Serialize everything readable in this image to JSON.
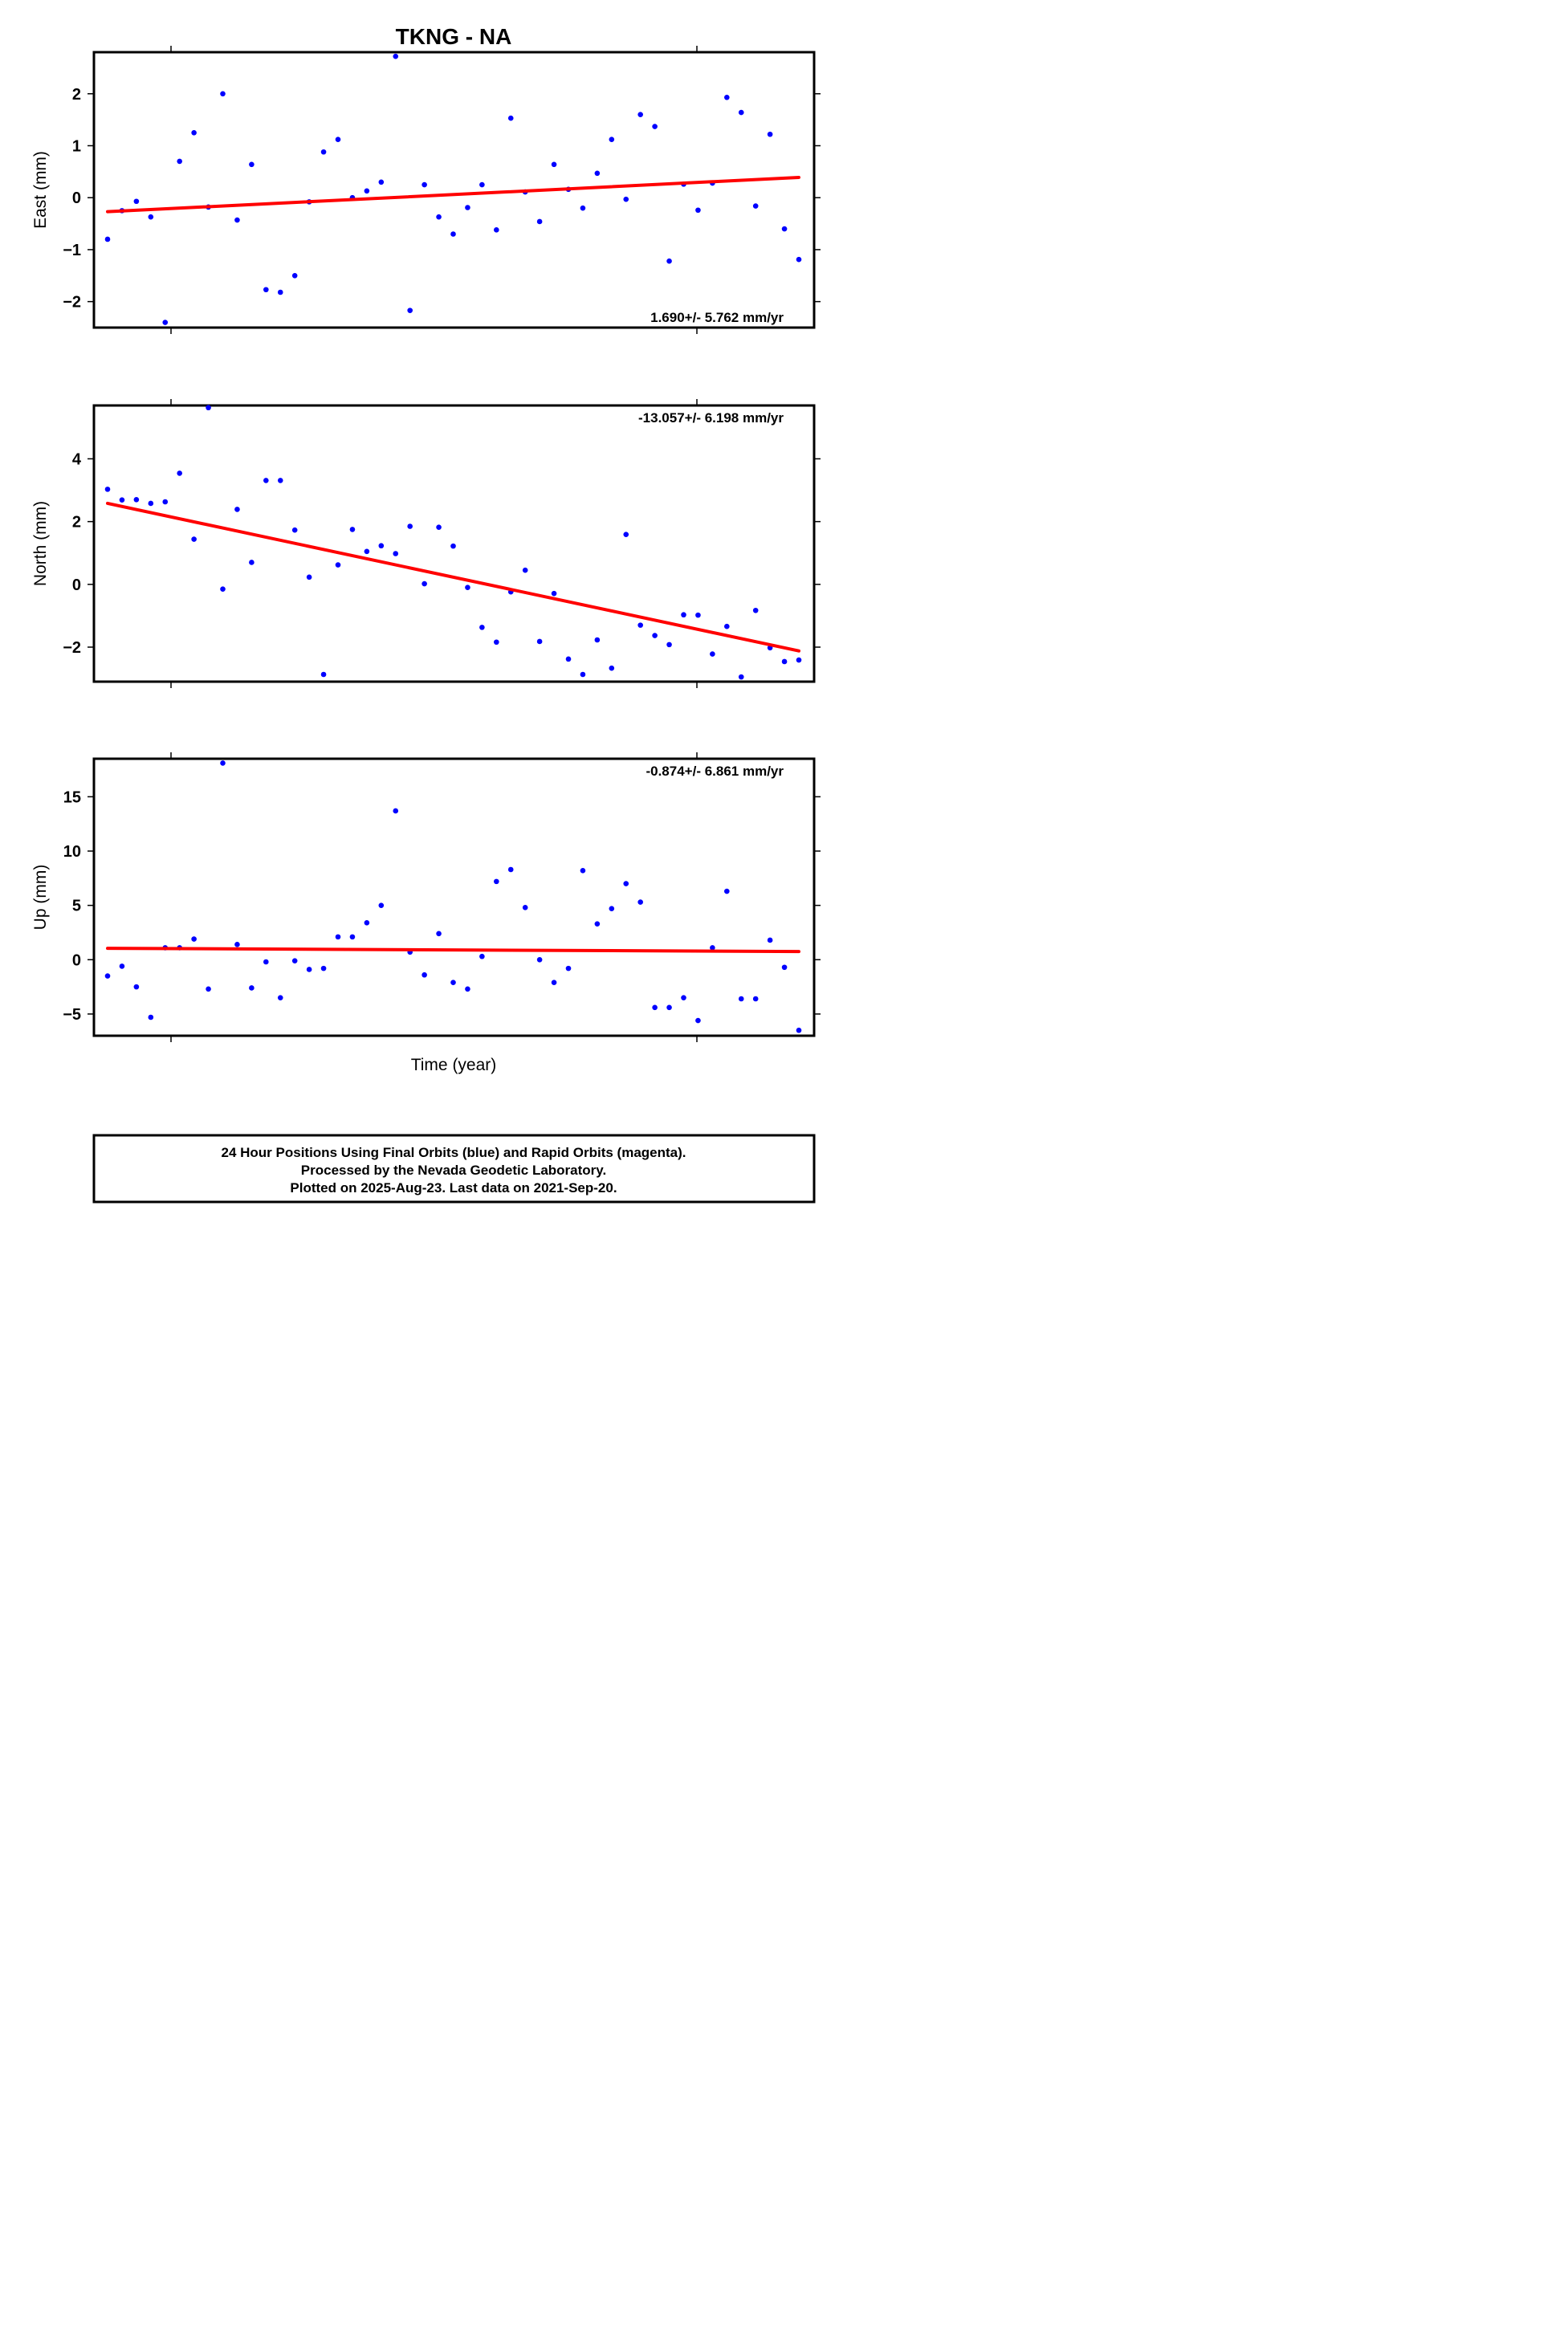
{
  "title": "TKNG - NA",
  "x_axis_label": "Time (year)",
  "colors": {
    "final_points": "#0000ff",
    "trend_line": "#ff0000",
    "frame": "#000000"
  },
  "footer": {
    "line1": "24 Hour Positions Using Final Orbits (blue) and Rapid Orbits (magenta).",
    "line2": "Processed by the Nevada Geodetic Laboratory.",
    "line3": "Plotted on 2025-Aug-23. Last data on 2021-Sep-20."
  },
  "chart_data": [
    {
      "type": "scatter",
      "component": "east",
      "ylabel": "East (mm)",
      "rate_text": "1.690+/- 5.762 mm/yr",
      "rate_position": "bottom-right",
      "ylim": [
        -2.5,
        2.8
      ],
      "yticks": [
        -2,
        -1,
        0,
        1,
        2
      ],
      "ytick_labels": [
        "−2",
        "−1",
        "0",
        "1",
        "2"
      ],
      "trend": [
        -0.27,
        0.39
      ],
      "values": [
        -0.8,
        -0.25,
        -0.07,
        -0.37,
        -2.4,
        0.7,
        1.25,
        -0.18,
        2.0,
        -0.43,
        0.64,
        -1.77,
        -1.82,
        -1.5,
        -0.08,
        0.88,
        1.12,
        0.0,
        0.13,
        0.3,
        2.72,
        -2.17,
        0.25,
        -0.37,
        -0.7,
        -0.19,
        0.25,
        -0.62,
        1.53,
        0.11,
        -0.46,
        0.64,
        0.16,
        -0.2,
        0.47,
        1.12,
        -0.03,
        1.6,
        1.37,
        -1.22,
        0.26,
        -0.24,
        0.28,
        1.93,
        1.64,
        -0.16,
        1.22,
        -0.6,
        -1.19
      ]
    },
    {
      "type": "scatter",
      "component": "north",
      "ylabel": "North (mm)",
      "rate_text": "-13.057+/- 6.198 mm/yr",
      "rate_position": "top-right",
      "ylim": [
        -3.1,
        5.7
      ],
      "yticks": [
        -2,
        0,
        2,
        4
      ],
      "ytick_labels": [
        "−2",
        "0",
        "2",
        "4"
      ],
      "trend": [
        2.58,
        -2.12
      ],
      "values": [
        3.03,
        2.69,
        2.7,
        2.58,
        2.63,
        3.54,
        1.44,
        5.63,
        -0.15,
        2.39,
        0.7,
        3.31,
        3.31,
        1.73,
        0.23,
        -2.87,
        0.62,
        1.75,
        1.05,
        1.23,
        0.98,
        1.85,
        0.02,
        1.82,
        1.22,
        -0.1,
        -1.37,
        -1.84,
        -0.24,
        0.45,
        -1.82,
        -0.29,
        -2.38,
        -2.87,
        -1.77,
        -2.67,
        1.59,
        -1.3,
        -1.63,
        -1.92,
        -0.97,
        -0.98,
        -2.22,
        -1.34,
        -2.95,
        -0.83,
        -2.02,
        -2.46,
        -2.41
      ]
    },
    {
      "type": "scatter",
      "component": "up",
      "ylabel": "Up (mm)",
      "rate_text": "-0.874+/- 6.861 mm/yr",
      "rate_position": "top-right",
      "ylim": [
        -7.0,
        18.5
      ],
      "yticks": [
        -5,
        0,
        5,
        10,
        15
      ],
      "ytick_labels": [
        "−5",
        "0",
        "5",
        "10",
        "15"
      ],
      "trend": [
        1.05,
        0.75
      ],
      "values": [
        -1.5,
        -0.6,
        -2.5,
        -5.3,
        1.1,
        1.1,
        1.9,
        -2.7,
        18.1,
        1.4,
        -2.6,
        -0.2,
        -3.5,
        -0.1,
        -0.9,
        -0.8,
        2.1,
        2.1,
        3.4,
        5.0,
        13.7,
        0.7,
        -1.4,
        2.4,
        -2.1,
        -2.7,
        0.3,
        7.2,
        8.3,
        4.8,
        0.0,
        -2.1,
        -0.8,
        8.2,
        3.3,
        4.7,
        7.0,
        5.3,
        -4.4,
        -4.4,
        -3.5,
        -5.6,
        1.1,
        6.3,
        -3.6,
        -3.6,
        1.8,
        -0.7,
        -6.5
      ]
    }
  ]
}
